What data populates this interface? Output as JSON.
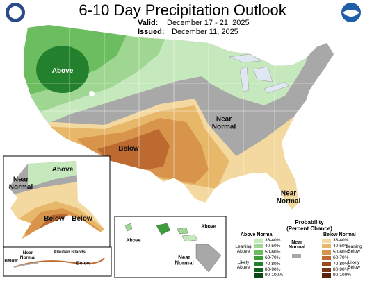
{
  "header": {
    "title": "6-10 Day Precipitation Outlook",
    "valid_label": "Valid:",
    "valid_dates": "December 17 - 21, 2025",
    "issued_label": "Issued:",
    "issued_date": "December 11, 2025"
  },
  "map_labels": [
    "Above",
    "Below",
    "Near Normal",
    "Near Normal",
    "Above",
    "Near Normal",
    "Below",
    "Below",
    "Above",
    "Above",
    "Near Normal",
    "Near Normal",
    "Aleutian Islands",
    "Below",
    "Below"
  ],
  "legend": {
    "title": "Probability",
    "subtitle": "(Percent Chance)",
    "above": {
      "heading": "Above Normal",
      "leaning": "Leaning Above",
      "likely": "Likely Above",
      "items": [
        {
          "label": "33-40%",
          "color": "#c6e8bd"
        },
        {
          "label": "40-50%",
          "color": "#9fd691"
        },
        {
          "label": "50-60%",
          "color": "#6cbd5f"
        },
        {
          "label": "60-70%",
          "color": "#3d9c3a"
        },
        {
          "label": "70-80%",
          "color": "#23802c"
        },
        {
          "label": "80-90%",
          "color": "#11611f"
        },
        {
          "label": "90-100%",
          "color": "#0a4a16"
        }
      ]
    },
    "near": {
      "heading": "Near Normal",
      "color": "#a8a8a8"
    },
    "below": {
      "heading": "Below Normal",
      "leaning": "Leaning Below",
      "likely": "Likely Below",
      "items": [
        {
          "label": "33-40%",
          "color": "#f3d9a0"
        },
        {
          "label": "40-50%",
          "color": "#e8b86a"
        },
        {
          "label": "50-60%",
          "color": "#d8944a"
        },
        {
          "label": "60-70%",
          "color": "#bd6a30"
        },
        {
          "label": "70-80%",
          "color": "#9b4a1e"
        },
        {
          "label": "80-90%",
          "color": "#7a3414"
        },
        {
          "label": "90-100%",
          "color": "#5a220c"
        }
      ]
    }
  }
}
